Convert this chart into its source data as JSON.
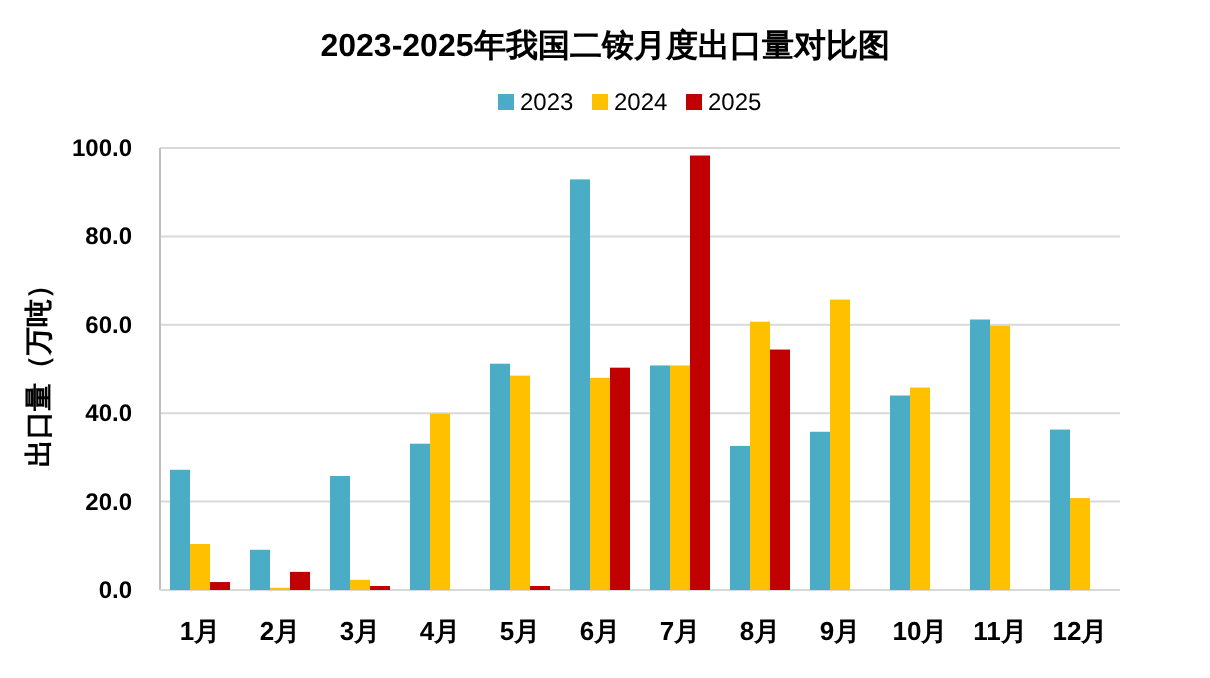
{
  "chart_data": {
    "type": "bar",
    "title": "2023-2025年我国二铵月度出口量对比图",
    "ylabel": "出口量（万吨）",
    "categories": [
      "1月",
      "2月",
      "3月",
      "4月",
      "5月",
      "6月",
      "7月",
      "8月",
      "9月",
      "10月",
      "11月",
      "12月"
    ],
    "series": [
      {
        "name": "2023",
        "color": "#4bacc6",
        "values": [
          27.2,
          9.1,
          25.8,
          33.1,
          51.2,
          92.9,
          50.8,
          32.6,
          35.8,
          44.0,
          61.2,
          36.3
        ]
      },
      {
        "name": "2024",
        "color": "#ffc000",
        "values": [
          10.4,
          0.5,
          2.3,
          39.9,
          48.5,
          48.0,
          50.8,
          60.7,
          65.7,
          45.8,
          59.8,
          20.8
        ]
      },
      {
        "name": "2025",
        "color": "#c00000",
        "values": [
          1.8,
          4.1,
          0.9,
          null,
          0.9,
          50.3,
          98.3,
          54.4,
          null,
          null,
          null,
          null
        ]
      }
    ],
    "ylim": [
      0,
      100
    ],
    "yticks": [
      {
        "value": 0,
        "label": "0.0"
      },
      {
        "value": 20,
        "label": "20.0"
      },
      {
        "value": 40,
        "label": "40.0"
      },
      {
        "value": 60,
        "label": "60.0"
      },
      {
        "value": 80,
        "label": "80.0"
      },
      {
        "value": 100,
        "label": "100.0"
      }
    ],
    "grid": "y",
    "legend": "top"
  }
}
